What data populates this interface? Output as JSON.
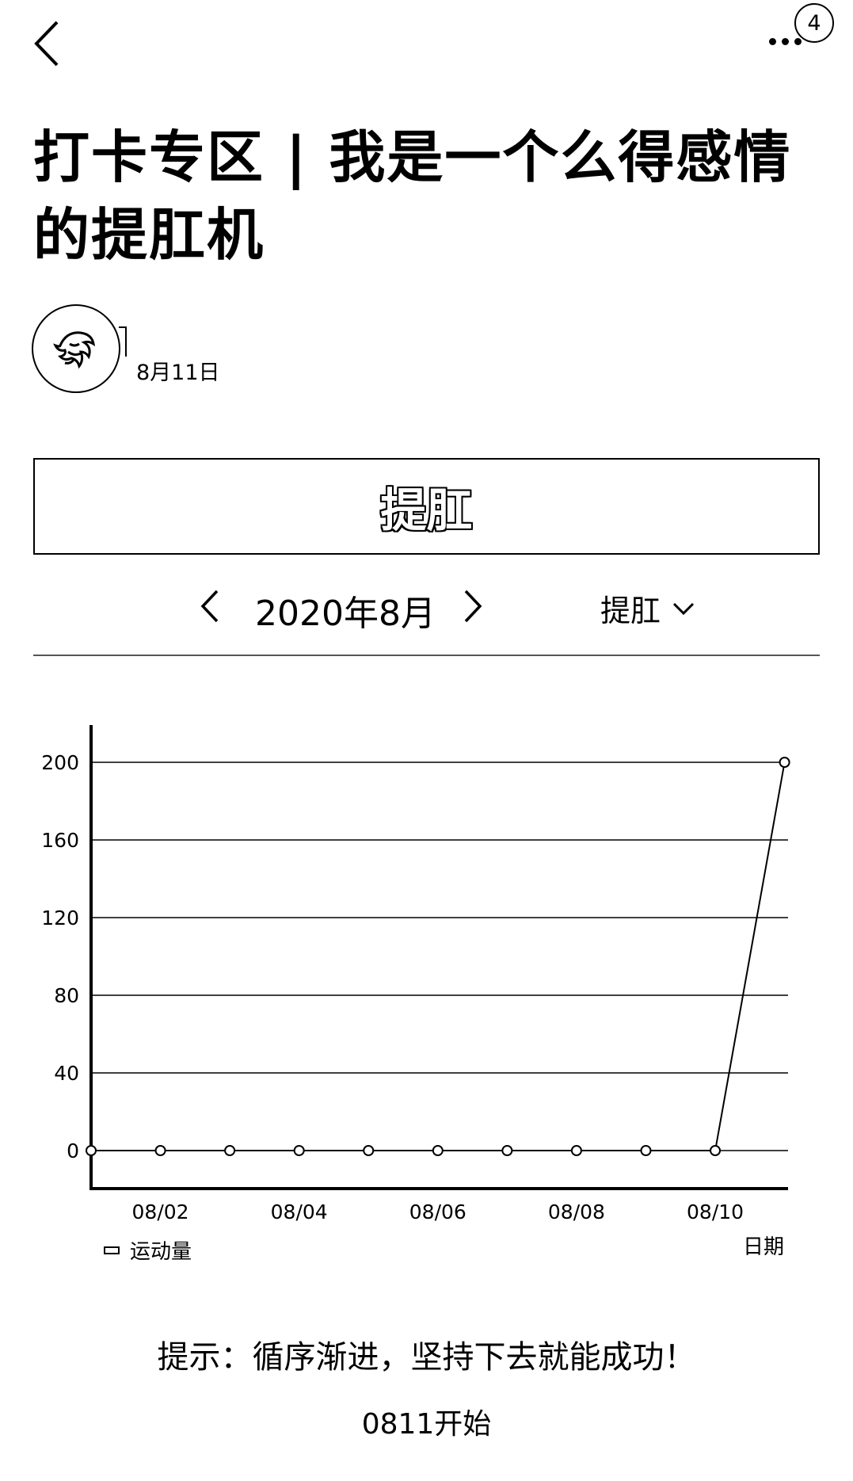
{
  "topbar": {
    "back_icon": "chevron-left-icon",
    "more_icon": "more-dots-icon",
    "badge_count": "4"
  },
  "post": {
    "title": "打卡专区 | 我是一个么得感情的提肛机",
    "date": "8月11日",
    "avatar_icon": "lion-avatar-icon"
  },
  "checkin": {
    "button_label": "提肛"
  },
  "month_nav": {
    "prev_icon": "chevron-left-icon",
    "current_month": "2020年8月",
    "next_icon": "chevron-right-icon",
    "type_selected": "提肛",
    "type_icon": "chevron-down-icon"
  },
  "chart_data": {
    "type": "line",
    "xlabel": "日期",
    "ylabel": "",
    "ylim": [
      0,
      200
    ],
    "y_ticks": [
      "0",
      "40",
      "80",
      "120",
      "160",
      "200"
    ],
    "x": [
      "08/01",
      "08/02",
      "08/03",
      "08/04",
      "08/05",
      "08/06",
      "08/07",
      "08/08",
      "08/09",
      "08/10",
      "08/11"
    ],
    "x_tick_labels": [
      "08/02",
      "08/04",
      "08/06",
      "08/08",
      "08/10"
    ],
    "series": [
      {
        "name": "运动量",
        "values": [
          0,
          0,
          0,
          0,
          0,
          0,
          0,
          0,
          0,
          0,
          200
        ]
      }
    ],
    "grid": true,
    "legend_position": "bottom-left"
  },
  "footer": {
    "tip": "提示：循序渐进，坚持下去就能成功！",
    "start_note": "0811开始"
  }
}
